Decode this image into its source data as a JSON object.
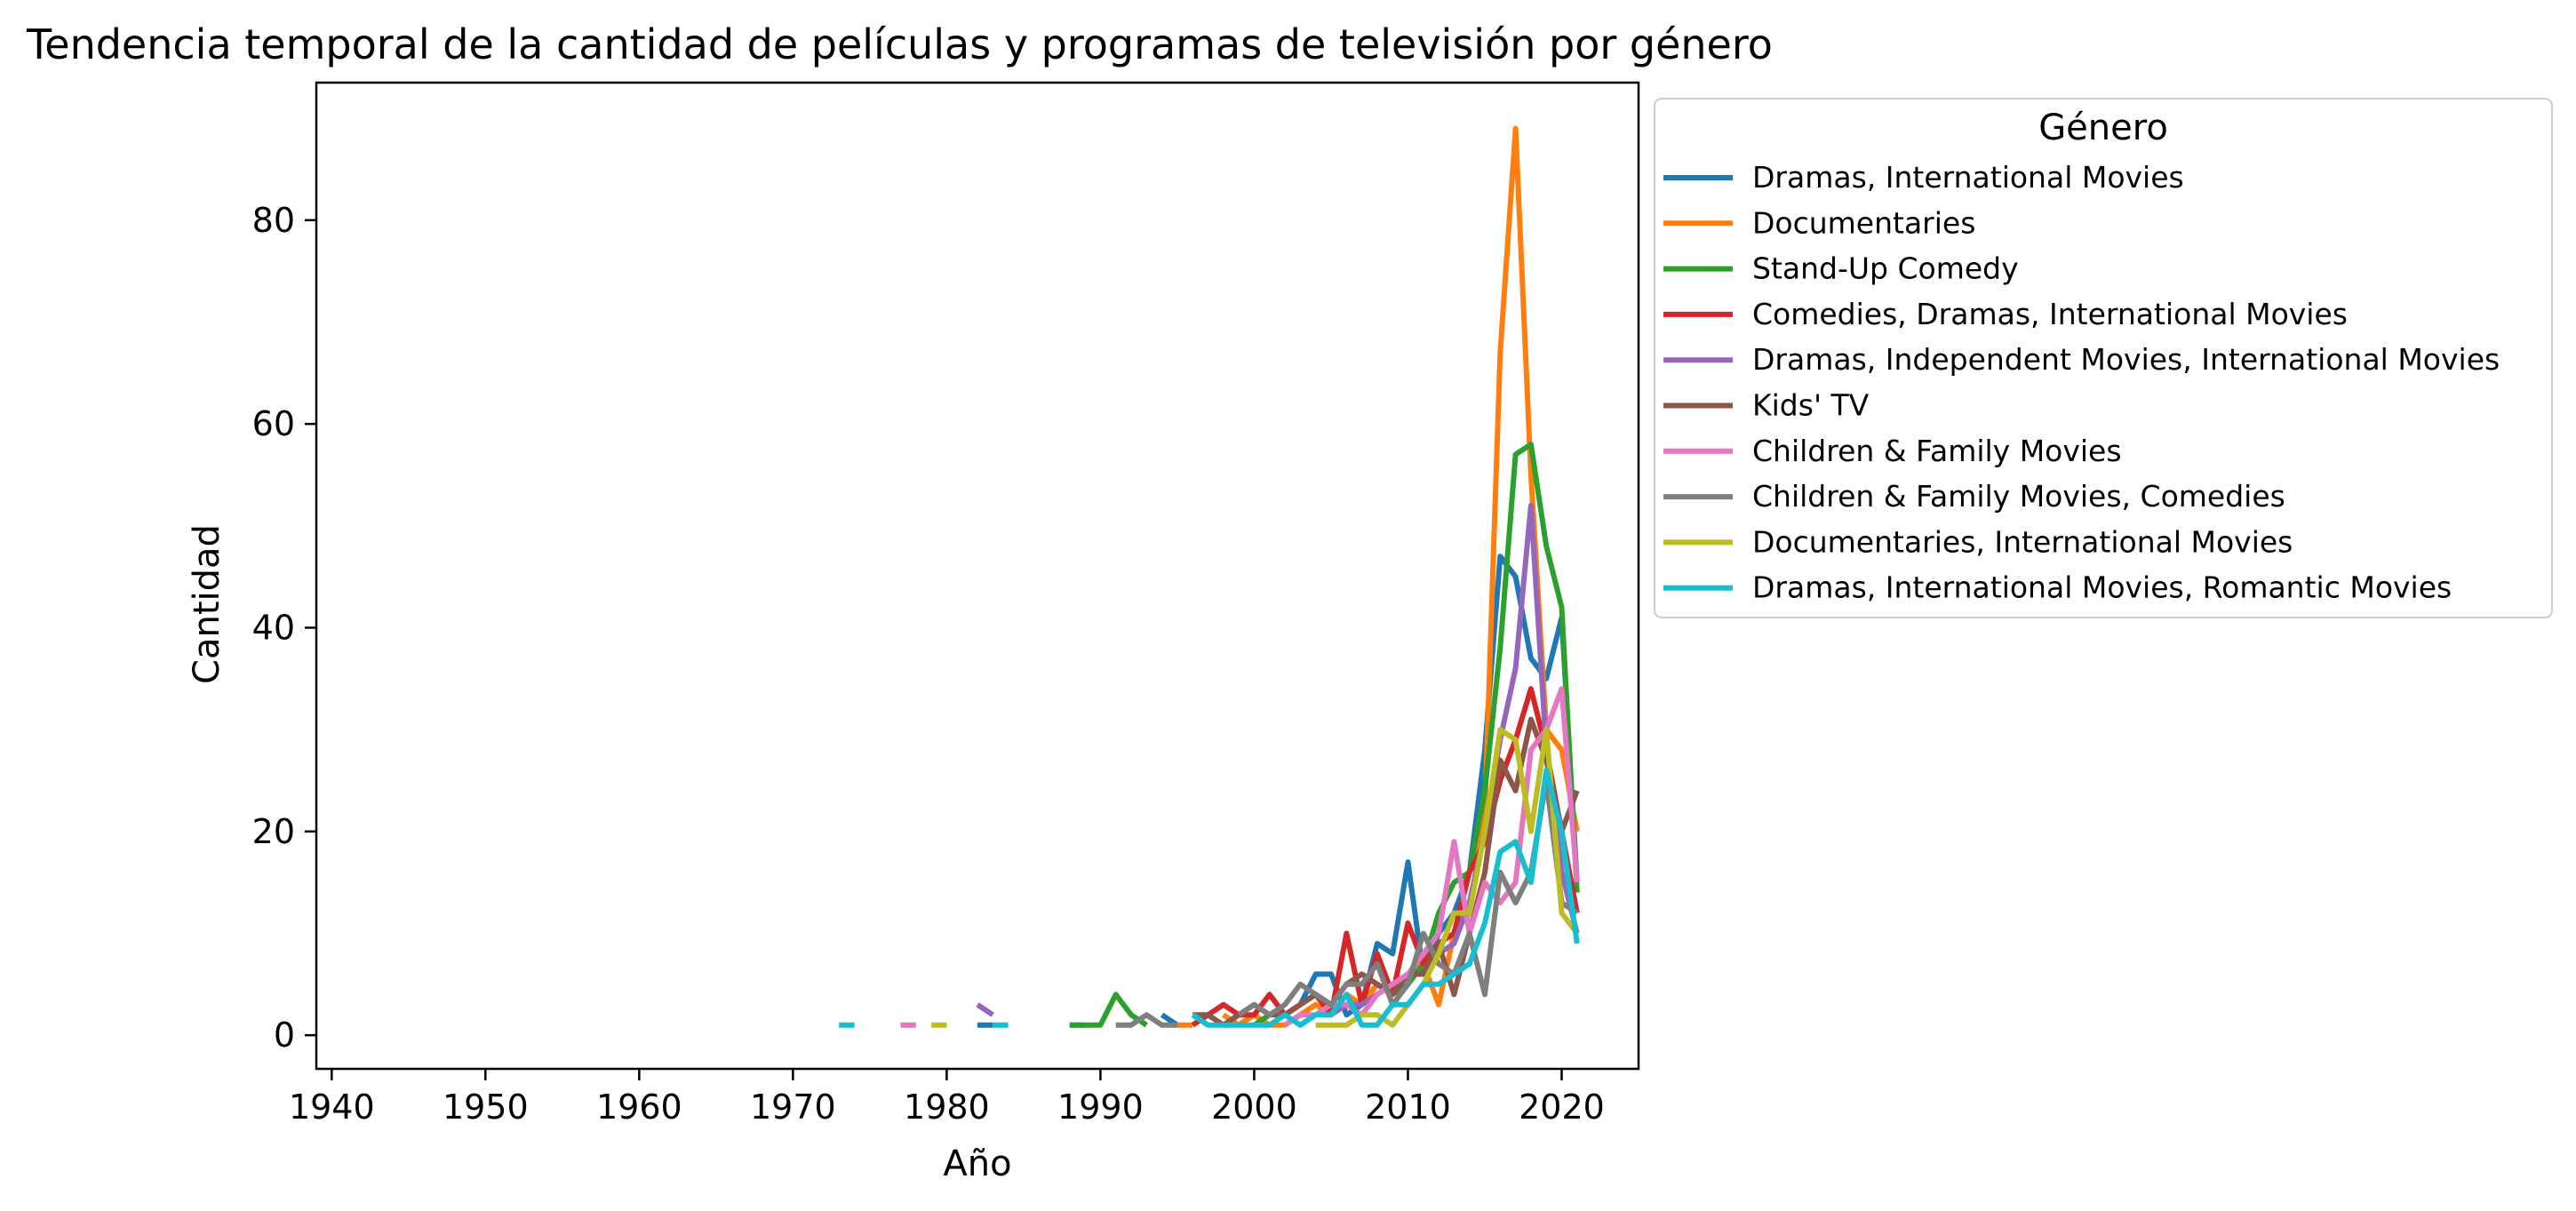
{
  "chart_data": {
    "type": "line",
    "title": "Tendencia temporal de la cantidad de películas y programas de televisión por género",
    "xlabel": "Año",
    "ylabel": "Cantidad",
    "xlim": [
      1939,
      2025
    ],
    "ylim": [
      -3.3,
      93.5
    ],
    "xticks": [
      1940,
      1950,
      1960,
      1970,
      1980,
      1990,
      2000,
      2010,
      2020
    ],
    "yticks": [
      0,
      20,
      40,
      60,
      80
    ],
    "grid": false,
    "legend": {
      "title": "Género",
      "placement": "right-outside"
    },
    "series": [
      {
        "name": "Dramas, International Movies",
        "color": "#1f77b4",
        "x": [
          1982,
          1983,
          1988,
          1989,
          1994,
          1995,
          1999,
          2000,
          2002,
          2003,
          2004,
          2005,
          2006,
          2007,
          2008,
          2009,
          2010,
          2011,
          2012,
          2013,
          2014,
          2015,
          2016,
          2017,
          2018,
          2019,
          2020,
          2021
        ],
        "y": [
          1,
          1,
          1,
          1,
          2,
          1,
          1,
          2,
          2,
          3,
          6,
          6,
          2,
          3,
          9,
          8,
          17,
          6,
          10,
          12,
          16,
          28,
          47,
          45,
          37,
          35,
          41,
          15
        ]
      },
      {
        "name": "Documentaries",
        "color": "#ff7f0e",
        "x": [
          1995,
          1996,
          1998,
          1999,
          2000,
          2001,
          2002,
          2003,
          2004,
          2005,
          2006,
          2007,
          2008,
          2009,
          2010,
          2011,
          2012,
          2013,
          2014,
          2015,
          2016,
          2017,
          2018,
          2019,
          2020,
          2021
        ],
        "y": [
          1,
          1,
          2,
          1,
          2,
          1,
          1,
          2,
          3,
          2,
          4,
          3,
          5,
          4,
          6,
          7,
          3,
          10,
          12,
          22,
          67,
          89,
          55,
          30,
          28,
          20
        ]
      },
      {
        "name": "Stand-Up Comedy",
        "color": "#2ca02c",
        "x": [
          1988,
          1989,
          1990,
          1991,
          1992,
          1993,
          2000,
          2001,
          2003,
          2005,
          2007,
          2009,
          2010,
          2011,
          2012,
          2013,
          2014,
          2015,
          2016,
          2017,
          2018,
          2019,
          2020,
          2021
        ],
        "y": [
          1,
          1,
          1,
          4,
          2,
          1,
          1,
          2,
          2,
          3,
          3,
          4,
          5,
          7,
          12,
          15,
          16,
          24,
          38,
          57,
          58,
          48,
          42,
          14
        ]
      },
      {
        "name": "Comedies, Dramas, International Movies",
        "color": "#d62728",
        "x": [
          1996,
          1997,
          1998,
          1999,
          2000,
          2001,
          2002,
          2003,
          2004,
          2005,
          2006,
          2007,
          2008,
          2009,
          2010,
          2011,
          2012,
          2013,
          2014,
          2015,
          2016,
          2017,
          2018,
          2019,
          2020,
          2021
        ],
        "y": [
          1,
          2,
          3,
          2,
          2,
          4,
          2,
          3,
          4,
          2,
          10,
          3,
          8,
          4,
          11,
          7,
          9,
          10,
          16,
          19,
          25,
          29,
          34,
          28,
          20,
          12
        ]
      },
      {
        "name": "Dramas, Independent Movies, International Movies",
        "color": "#9467bd",
        "x": [
          1982,
          1983,
          1998,
          1999,
          2002,
          2003,
          2005,
          2006,
          2007,
          2008,
          2009,
          2010,
          2011,
          2012,
          2013,
          2014,
          2015,
          2016,
          2017,
          2018,
          2019,
          2020,
          2021
        ],
        "y": [
          3,
          2,
          1,
          2,
          2,
          3,
          2,
          3,
          3,
          4,
          5,
          6,
          6,
          8,
          9,
          13,
          20,
          29,
          36,
          52,
          28,
          16,
          10
        ]
      },
      {
        "name": "Kids' TV",
        "color": "#8c564b",
        "x": [
          1996,
          1997,
          1998,
          1999,
          2000,
          2001,
          2002,
          2003,
          2004,
          2005,
          2006,
          2007,
          2008,
          2009,
          2010,
          2011,
          2012,
          2013,
          2014,
          2015,
          2016,
          2017,
          2018,
          2019,
          2020,
          2021
        ],
        "y": [
          2,
          2,
          1,
          2,
          3,
          2,
          2,
          3,
          4,
          3,
          5,
          6,
          5,
          4,
          6,
          6,
          9,
          4,
          10,
          16,
          27,
          24,
          31,
          27,
          20,
          24
        ]
      },
      {
        "name": "Children & Family Movies",
        "color": "#e377c2",
        "x": [
          1977,
          1978,
          2002,
          2003,
          2004,
          2005,
          2006,
          2007,
          2008,
          2009,
          2010,
          2011,
          2012,
          2013,
          2014,
          2015,
          2016,
          2017,
          2018,
          2019,
          2020,
          2021
        ],
        "y": [
          1,
          1,
          1,
          2,
          2,
          3,
          3,
          2,
          4,
          5,
          6,
          8,
          10,
          19,
          10,
          15,
          13,
          15,
          28,
          30,
          34,
          15
        ]
      },
      {
        "name": "Children & Family Movies, Comedies",
        "color": "#7f7f7f",
        "x": [
          1991,
          1992,
          1993,
          1994,
          1995,
          1999,
          2000,
          2001,
          2002,
          2003,
          2004,
          2005,
          2006,
          2007,
          2008,
          2009,
          2010,
          2011,
          2012,
          2013,
          2014,
          2015,
          2016,
          2017,
          2018,
          2019,
          2020,
          2021
        ],
        "y": [
          1,
          1,
          2,
          1,
          1,
          2,
          3,
          2,
          3,
          5,
          4,
          3,
          5,
          5,
          7,
          3,
          5,
          10,
          7,
          6,
          10,
          4,
          16,
          13,
          16,
          25,
          13,
          12
        ]
      },
      {
        "name": "Documentaries, International Movies",
        "color": "#bcbd22",
        "x": [
          1979,
          1980,
          2004,
          2005,
          2006,
          2007,
          2008,
          2009,
          2010,
          2011,
          2012,
          2013,
          2014,
          2015,
          2016,
          2017,
          2018,
          2019,
          2020,
          2021
        ],
        "y": [
          1,
          1,
          1,
          1,
          1,
          2,
          2,
          1,
          3,
          5,
          8,
          12,
          12,
          20,
          30,
          29,
          20,
          30,
          12,
          10
        ]
      },
      {
        "name": "Dramas, International Movies, Romantic Movies",
        "color": "#17becf",
        "x": [
          1973,
          1974,
          1983,
          1984,
          1996,
          1997,
          1998,
          1999,
          2000,
          2001,
          2002,
          2003,
          2004,
          2005,
          2006,
          2007,
          2008,
          2009,
          2010,
          2011,
          2012,
          2013,
          2014,
          2015,
          2016,
          2017,
          2018,
          2019,
          2020,
          2021
        ],
        "y": [
          1,
          1,
          1,
          1,
          2,
          1,
          1,
          1,
          1,
          1,
          2,
          1,
          2,
          2,
          4,
          1,
          1,
          3,
          3,
          5,
          5,
          6,
          7,
          11,
          18,
          19,
          15,
          26,
          20,
          9
        ]
      }
    ]
  }
}
